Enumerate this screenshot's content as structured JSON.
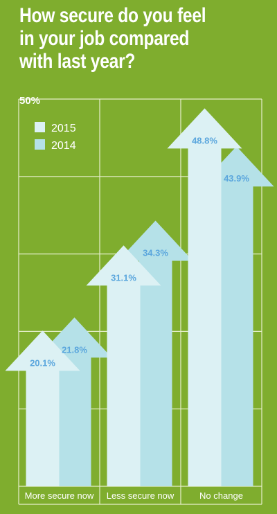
{
  "title_lines": [
    "How secure do you feel",
    "in your job compared",
    "with last year?"
  ],
  "colors": {
    "background": "#7fad2e",
    "grid": "#e6efcc",
    "series_2015": "#dcf1f4",
    "series_2014": "#b5e1e8",
    "value_text": "#5aa6dd",
    "category_text": "#ffffff"
  },
  "chart_data": {
    "type": "bar",
    "title": "How secure do you feel in your job compared with last year?",
    "categories": [
      "More secure now",
      "Less secure now",
      "No change"
    ],
    "series": [
      {
        "name": "2015",
        "values": [
          20.1,
          31.1,
          48.8
        ],
        "labels": [
          "20.1%",
          "31.1%",
          "48.8%"
        ]
      },
      {
        "name": "2014",
        "values": [
          21.8,
          34.3,
          43.9
        ],
        "labels": [
          "21.8%",
          "34.3%",
          "43.9%"
        ]
      }
    ],
    "ylim": [
      0,
      50
    ],
    "y_tick_label": "50%",
    "grid": true,
    "legend_placement": "top-left"
  }
}
